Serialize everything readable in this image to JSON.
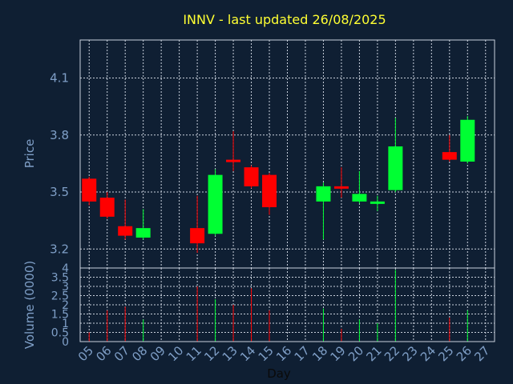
{
  "chart_data": {
    "type": "candlestick",
    "title": "INNV - last updated 26/08/2025",
    "xlabel": "Day",
    "ylabel": "Price",
    "volume_label": "Volume (0000)",
    "x_ticks": [
      "05",
      "06",
      "07",
      "08",
      "09",
      "10",
      "11",
      "12",
      "13",
      "14",
      "15",
      "16",
      "17",
      "18",
      "19",
      "20",
      "21",
      "22",
      "23",
      "24",
      "25",
      "26",
      "27"
    ],
    "price_ticks": [
      "3.2",
      "3.5",
      "3.8",
      "4.1"
    ],
    "price_tick_values": [
      3.2,
      3.5,
      3.8,
      4.1
    ],
    "ylim": [
      3.1,
      4.3
    ],
    "volume_ticks": [
      "0",
      "0.5",
      "1",
      "1.5",
      "2",
      "2.5",
      "3",
      "3.5",
      "4"
    ],
    "volume_tick_values": [
      0,
      0.5,
      1,
      1.5,
      2,
      2.5,
      3,
      3.5,
      4
    ],
    "volume_ylim": [
      0,
      4
    ],
    "grid": true,
    "up_color": "#00ff33",
    "down_color": "#ff0000",
    "candles": [
      {
        "day": "05",
        "open": 3.57,
        "high": 3.58,
        "low": 3.43,
        "close": 3.45,
        "volume": 0.5
      },
      {
        "day": "06",
        "open": 3.47,
        "high": 3.5,
        "low": 3.36,
        "close": 3.37,
        "volume": 1.7
      },
      {
        "day": "07",
        "open": 3.32,
        "high": 3.46,
        "low": 3.25,
        "close": 3.27,
        "volume": 1.9
      },
      {
        "day": "08",
        "open": 3.26,
        "high": 3.41,
        "low": 3.25,
        "close": 3.31,
        "volume": 1.2
      },
      {
        "day": "11",
        "open": 3.31,
        "high": 3.48,
        "low": 3.18,
        "close": 3.23,
        "volume": 3.0
      },
      {
        "day": "12",
        "open": 3.28,
        "high": 3.62,
        "low": 3.27,
        "close": 3.59,
        "volume": 2.3
      },
      {
        "day": "13",
        "open": 3.67,
        "high": 3.82,
        "low": 3.61,
        "close": 3.66,
        "volume": 2.0
      },
      {
        "day": "14",
        "open": 3.63,
        "high": 3.64,
        "low": 3.52,
        "close": 3.53,
        "volume": 2.9
      },
      {
        "day": "15",
        "open": 3.59,
        "high": 3.6,
        "low": 3.38,
        "close": 3.42,
        "volume": 1.7
      },
      {
        "day": "18",
        "open": 3.45,
        "high": 3.55,
        "low": 3.25,
        "close": 3.53,
        "volume": 1.8
      },
      {
        "day": "19",
        "open": 3.53,
        "high": 3.63,
        "low": 3.47,
        "close": 3.52,
        "volume": 0.7
      },
      {
        "day": "20",
        "open": 3.45,
        "high": 3.61,
        "low": 3.44,
        "close": 3.49,
        "volume": 1.2
      },
      {
        "day": "21",
        "open": 3.44,
        "high": 3.48,
        "low": 3.4,
        "close": 3.45,
        "volume": 1.0
      },
      {
        "day": "22",
        "open": 3.51,
        "high": 3.89,
        "low": 3.5,
        "close": 3.74,
        "volume": 3.9
      },
      {
        "day": "25",
        "open": 3.71,
        "high": 3.8,
        "low": 3.66,
        "close": 3.67,
        "volume": 1.3
      },
      {
        "day": "26",
        "open": 3.66,
        "high": 3.9,
        "low": 3.65,
        "close": 3.88,
        "volume": 1.7
      }
    ]
  }
}
